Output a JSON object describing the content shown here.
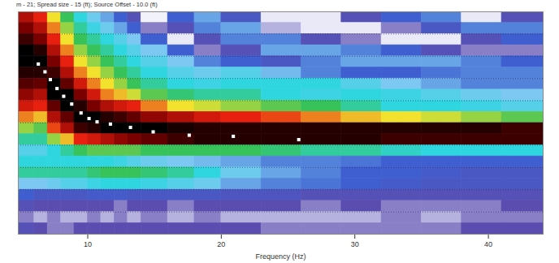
{
  "chart_data": {
    "type": "heatmap",
    "title": "m - 21; Spread size - 15 (ft); Source Offset - 10.0 (ft)",
    "x_label": "Frequency (Hz)",
    "xlim": [
      4.8,
      44.1
    ],
    "xticks": [
      10,
      20,
      30,
      40
    ],
    "ylim": [
      0,
      1000
    ],
    "yticks": [
      100,
      200,
      300,
      400,
      500,
      600,
      700,
      800,
      900
    ],
    "grid": true,
    "tick_labels": "x",
    "x_bins": [
      4.8,
      6,
      7,
      8,
      9,
      10,
      11,
      12,
      13,
      14,
      16,
      18,
      20,
      23,
      26,
      29,
      32,
      35,
      38,
      41,
      44.1
    ],
    "y_bins": [
      1000,
      950,
      900,
      850,
      800,
      750,
      700,
      650,
      600,
      550,
      500,
      450,
      400,
      350,
      300,
      250,
      200,
      150,
      100,
      50,
      0
    ],
    "values": [
      [
        0.85,
        0.8,
        0.7,
        0.6,
        0.5,
        0.42,
        0.35,
        0.25,
        0.15,
        0.03,
        0.25,
        0.35,
        0.2,
        0.05,
        0.05,
        0.15,
        0.25,
        0.3,
        0.05,
        0.15
      ],
      [
        0.9,
        0.85,
        0.75,
        0.65,
        0.55,
        0.48,
        0.42,
        0.35,
        0.25,
        0.1,
        0.15,
        0.3,
        0.35,
        0.08,
        0.05,
        0.05,
        0.1,
        0.2,
        0.3,
        0.3
      ],
      [
        0.95,
        0.9,
        0.8,
        0.7,
        0.6,
        0.55,
        0.5,
        0.45,
        0.4,
        0.25,
        0.05,
        0.15,
        0.3,
        0.3,
        0.15,
        0.1,
        0.05,
        0.05,
        0.15,
        0.25
      ],
      [
        1,
        0.97,
        0.85,
        0.75,
        0.65,
        0.6,
        0.55,
        0.5,
        0.45,
        0.4,
        0.25,
        0.1,
        0.15,
        0.35,
        0.35,
        0.3,
        0.25,
        0.15,
        0.1,
        0.1
      ],
      [
        1,
        1,
        0.9,
        0.8,
        0.7,
        0.65,
        0.6,
        0.55,
        0.5,
        0.45,
        0.4,
        0.3,
        0.25,
        0.2,
        0.3,
        0.35,
        0.35,
        0.35,
        0.3,
        0.25
      ],
      [
        0.97,
        0.97,
        0.95,
        0.85,
        0.75,
        0.7,
        0.65,
        0.6,
        0.55,
        0.5,
        0.45,
        0.42,
        0.45,
        0.38,
        0.3,
        0.25,
        0.25,
        0.28,
        0.3,
        0.3
      ],
      [
        0.93,
        0.92,
        1,
        0.92,
        0.82,
        0.75,
        0.7,
        0.65,
        0.6,
        0.55,
        0.5,
        0.48,
        0.5,
        0.5,
        0.5,
        0.45,
        0.4,
        0.35,
        0.3,
        0.3
      ],
      [
        0.88,
        0.85,
        1,
        1,
        0.9,
        0.82,
        0.75,
        0.72,
        0.68,
        0.62,
        0.58,
        0.55,
        0.55,
        0.5,
        0.48,
        0.5,
        0.48,
        0.45,
        0.42,
        0.4
      ],
      [
        0.82,
        0.8,
        0.92,
        1,
        0.97,
        0.9,
        0.85,
        0.82,
        0.8,
        0.75,
        0.7,
        0.68,
        0.65,
        0.62,
        0.6,
        0.55,
        0.5,
        0.5,
        0.48,
        0.45
      ],
      [
        0.75,
        0.72,
        0.85,
        0.92,
        1,
        1,
        0.97,
        0.95,
        0.92,
        0.88,
        0.85,
        0.82,
        0.8,
        0.78,
        0.75,
        0.72,
        0.7,
        0.68,
        0.65,
        0.62
      ],
      [
        0.65,
        0.62,
        0.78,
        0.85,
        0.95,
        0.97,
        1,
        1,
        1,
        1,
        0.98,
        0.97,
        0.97,
        0.97,
        0.97,
        0.97,
        0.97,
        0.97,
        0.97,
        0.95
      ],
      [
        0.55,
        0.55,
        0.65,
        0.72,
        0.8,
        0.82,
        0.85,
        0.88,
        0.9,
        0.92,
        0.95,
        0.97,
        0.97,
        0.97,
        0.97,
        0.97,
        0.95,
        0.95,
        0.95,
        0.95
      ],
      [
        0.45,
        0.45,
        0.5,
        0.55,
        0.6,
        0.62,
        0.62,
        0.62,
        0.62,
        0.6,
        0.6,
        0.6,
        0.6,
        0.58,
        0.55,
        0.55,
        0.52,
        0.5,
        0.5,
        0.5
      ],
      [
        0.5,
        0.5,
        0.5,
        0.5,
        0.5,
        0.5,
        0.5,
        0.48,
        0.45,
        0.42,
        0.4,
        0.38,
        0.35,
        0.3,
        0.3,
        0.28,
        0.25,
        0.25,
        0.25,
        0.25
      ],
      [
        0.55,
        0.55,
        0.55,
        0.55,
        0.55,
        0.58,
        0.6,
        0.6,
        0.6,
        0.58,
        0.55,
        0.5,
        0.42,
        0.35,
        0.3,
        0.25,
        0.25,
        0.22,
        0.2,
        0.2
      ],
      [
        0.4,
        0.4,
        0.42,
        0.45,
        0.45,
        0.48,
        0.5,
        0.5,
        0.5,
        0.48,
        0.45,
        0.42,
        0.35,
        0.3,
        0.28,
        0.25,
        0.22,
        0.2,
        0.2,
        0.2
      ],
      [
        0.25,
        0.2,
        0.2,
        0.2,
        0.2,
        0.22,
        0.22,
        0.22,
        0.2,
        0.2,
        0.2,
        0.2,
        0.18,
        0.18,
        0.15,
        0.15,
        0.15,
        0.15,
        0.15,
        0.15
      ],
      [
        0.15,
        0.12,
        0.12,
        0.12,
        0.12,
        0.12,
        0.12,
        0.1,
        0.12,
        0.12,
        0.1,
        0.12,
        0.12,
        0.12,
        0.1,
        0.12,
        0.1,
        0.1,
        0.1,
        0.12
      ],
      [
        0.1,
        0.08,
        0.1,
        0.08,
        0.08,
        0.1,
        0.08,
        0.1,
        0.08,
        0.1,
        0.08,
        0.1,
        0.08,
        0.08,
        0.08,
        0.08,
        0.1,
        0.08,
        0.1,
        0.1
      ],
      [
        0.15,
        0.12,
        0.1,
        0.1,
        0.12,
        0.12,
        0.12,
        0.12,
        0.12,
        0.12,
        0.12,
        0.12,
        0.12,
        0.1,
        0.1,
        0.1,
        0.1,
        0.1,
        0.12,
        0.12
      ]
    ],
    "series": [
      {
        "type": "scatter",
        "marker": "square",
        "color": "#ffffff",
        "x": [
          6.3,
          6.8,
          7.2,
          7.7,
          8.2,
          8.8,
          9.5,
          10.1,
          10.7,
          11.7,
          13.2,
          14.9,
          17.6,
          20.9,
          25.8
        ],
        "values": [
          765,
          730,
          695,
          655,
          620,
          585,
          545,
          520,
          505,
          495,
          480,
          460,
          445,
          440,
          425
        ]
      }
    ]
  }
}
